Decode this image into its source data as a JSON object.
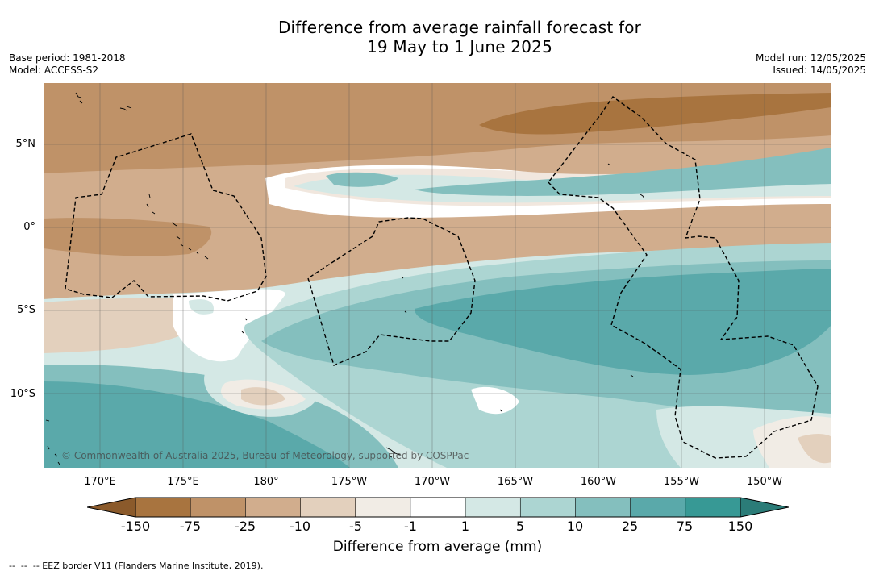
{
  "title": {
    "line1": "Difference from average rainfall forecast for",
    "line2": "19 May to 1 June 2025"
  },
  "meta": {
    "base_period": "Base period: 1981-2018",
    "model": "Model: ACCESS-S2",
    "model_run": "Model run: 12/05/2025",
    "issued": "Issued: 14/05/2025"
  },
  "map": {
    "lat_labels": [
      "5°N",
      "0°",
      "5°S",
      "10°S"
    ],
    "lon_labels": [
      "170°E",
      "175°E",
      "180°",
      "175°W",
      "170°W",
      "165°W",
      "160°W",
      "155°W",
      "150°W"
    ],
    "copyright": "© Commonwealth of Australia 2025, Bureau of Meteorology, supported by COSPPac"
  },
  "colorbar": {
    "title": "Difference from average (mm)",
    "ticks": [
      "-150",
      "-75",
      "-25",
      "-10",
      "-5",
      "-1",
      "1",
      "5",
      "10",
      "25",
      "75",
      "150"
    ],
    "colors": [
      "#a8743f",
      "#bf9268",
      "#d1ad8d",
      "#e3d0bd",
      "#f1ece5",
      "#ffffff",
      "#d4e8e5",
      "#acd5d2",
      "#84bfbe",
      "#5aa9aa",
      "#379995"
    ],
    "extend_low_color": "#8b5a2b",
    "extend_high_color": "#2b7c78"
  },
  "footnote": "--  --  -- EEZ border V11 (Flanders Marine Institute, 2019)."
}
